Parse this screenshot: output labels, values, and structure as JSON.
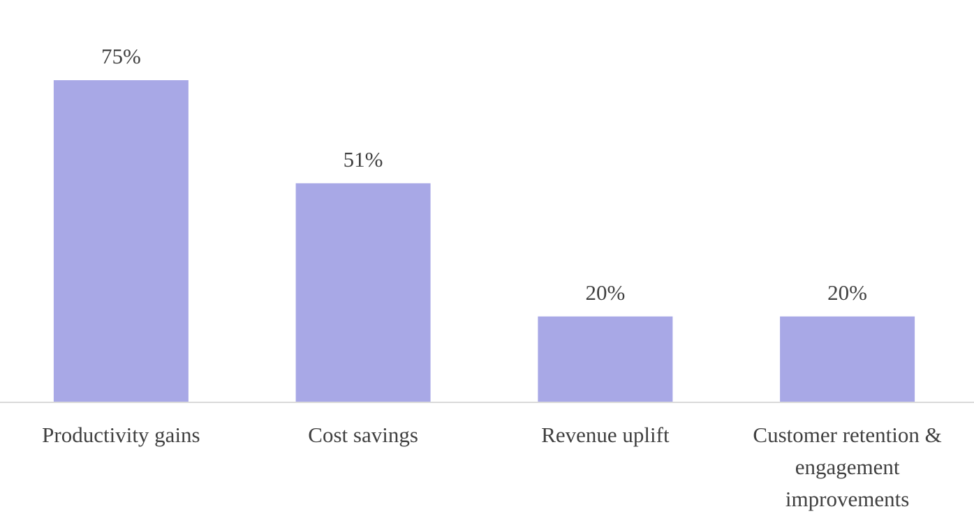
{
  "chart_data": {
    "type": "bar",
    "categories": [
      "Productivity gains",
      "Cost savings",
      "Revenue uplift",
      "Customer retention & engagement improvements"
    ],
    "category_label_lines": [
      [
        "Productivity gains"
      ],
      [
        "Cost savings"
      ],
      [
        "Revenue uplift"
      ],
      [
        "Customer retention &",
        "engagement",
        "improvements"
      ]
    ],
    "values": [
      75,
      51,
      20,
      20
    ],
    "value_labels": [
      "75%",
      "51%",
      "20%",
      "20%"
    ],
    "unit": "%",
    "title": "",
    "xlabel": "",
    "ylabel": "",
    "ylim": [
      0,
      75
    ],
    "grid": false,
    "legend": "none",
    "bar_color": "#a8a8e6",
    "baseline_color": "#d9d9d9",
    "text_color": "#404040"
  }
}
